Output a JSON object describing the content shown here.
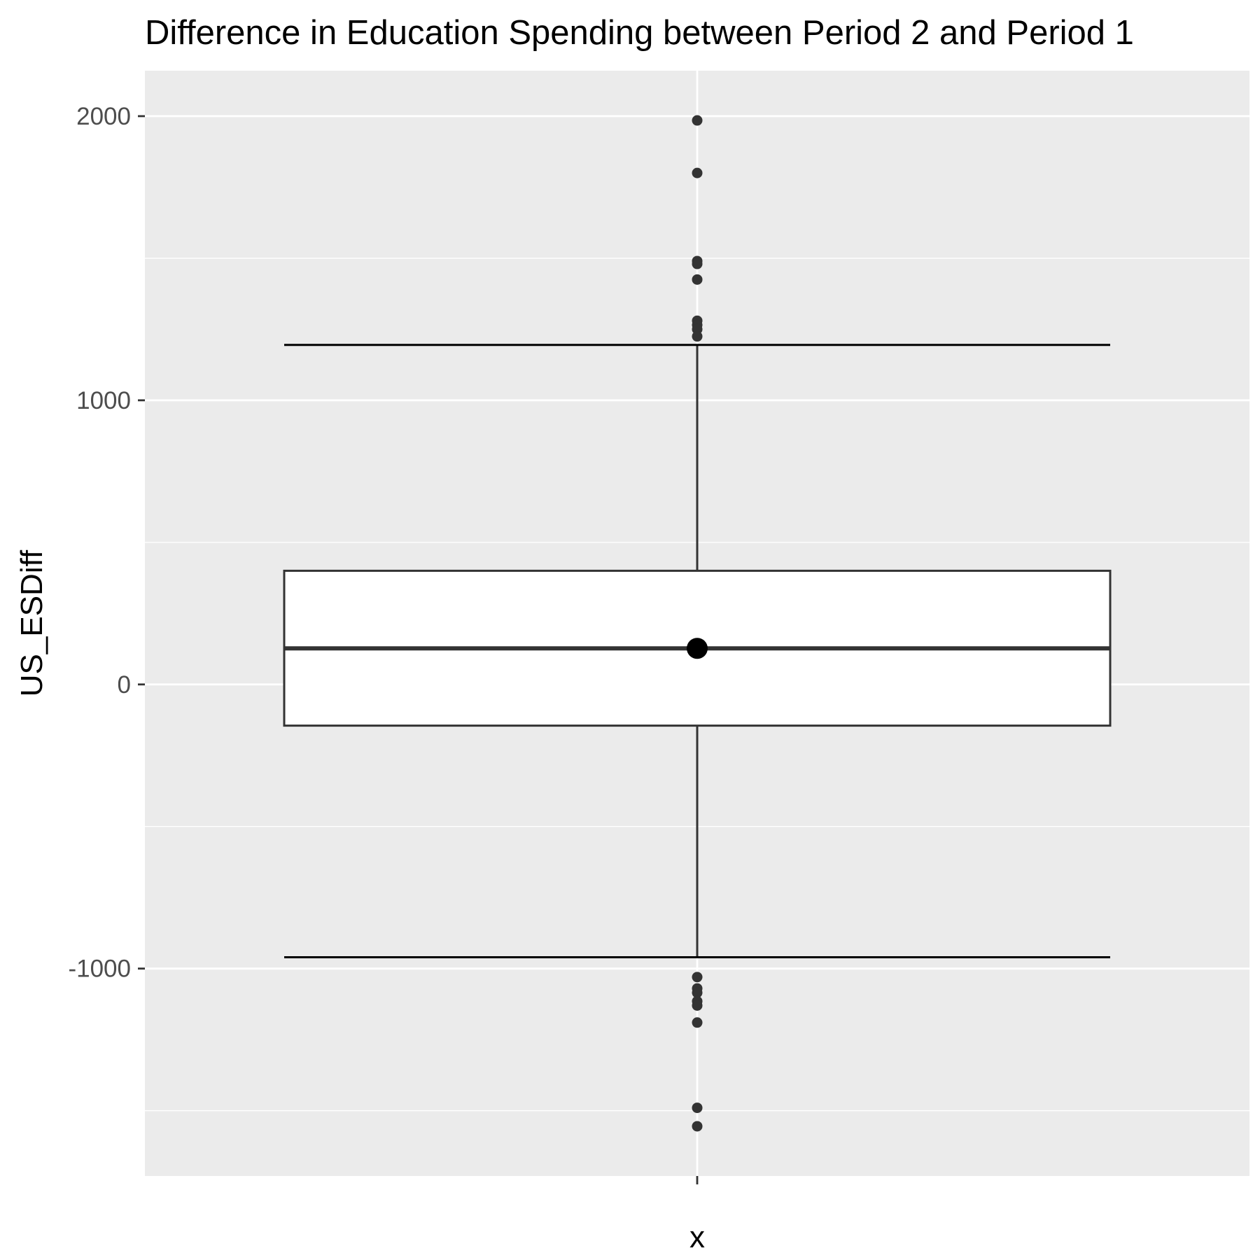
{
  "chart_data": {
    "type": "box",
    "title": "Difference in Education Spending between Period 2 and Period 1",
    "xlabel": "x",
    "ylabel": "US_ESDiff",
    "categories": [
      ""
    ],
    "ylim": [
      -1730,
      2160
    ],
    "yticks": [
      2000,
      1000,
      0,
      -1000
    ],
    "ytick_labels": [
      "2000",
      "1000",
      "0",
      "-1000"
    ],
    "grid": true,
    "box": {
      "q1": -145,
      "median": 127,
      "q3": 400,
      "whisker_low": -960,
      "whisker_high": 1195,
      "mean": 127
    },
    "outliers": [
      1985,
      1800,
      1490,
      1480,
      1425,
      1280,
      1265,
      1250,
      1225,
      -1030,
      -1070,
      -1085,
      -1115,
      -1130,
      -1190,
      -1490,
      -1555
    ]
  }
}
